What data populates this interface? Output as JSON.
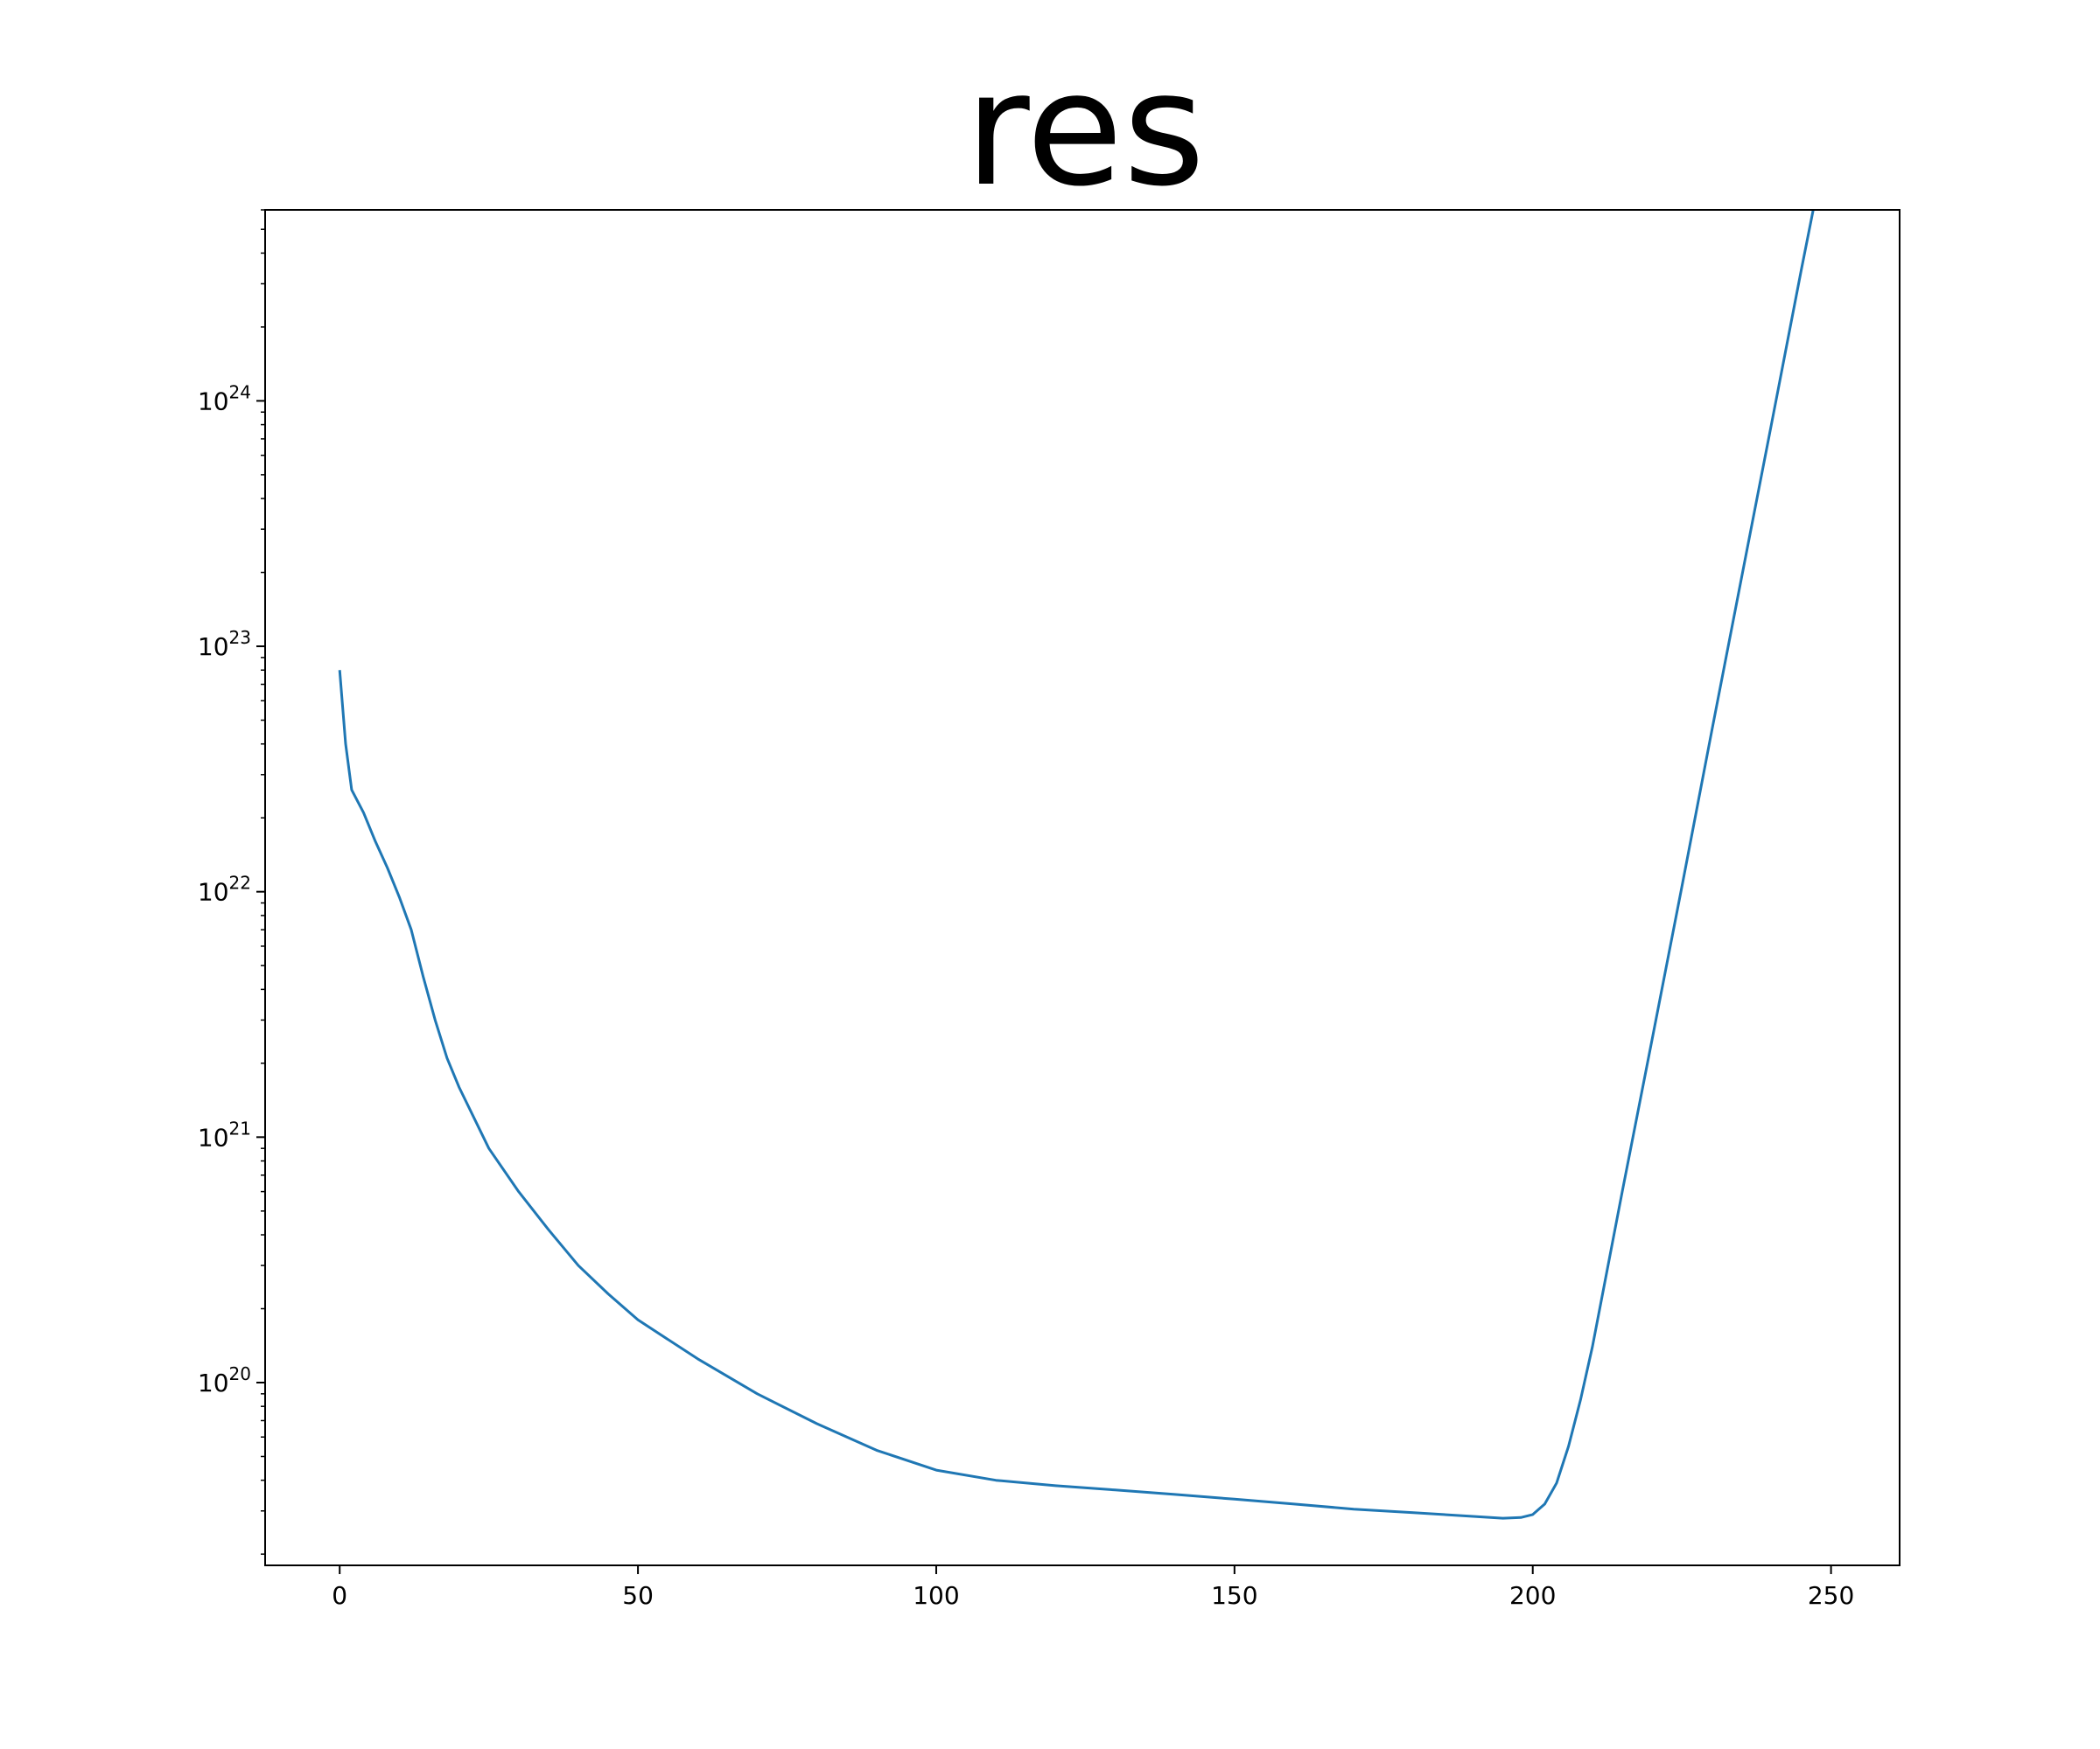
{
  "chart_data": {
    "type": "line",
    "title": "res",
    "xlabel": "",
    "ylabel": "",
    "xscale": "linear",
    "yscale": "log",
    "xlim": [
      -12.5,
      261.5
    ],
    "ylim": [
      1.8e+19,
      6e+24
    ],
    "grid": false,
    "line_color": "#1f77b4",
    "x_ticks": [
      0,
      50,
      100,
      150,
      200,
      250
    ],
    "x_tick_labels": [
      "0",
      "50",
      "100",
      "150",
      "200",
      "250"
    ],
    "y_ticks": [
      1e+20,
      1e+21,
      1e+22,
      1e+23,
      1e+24
    ],
    "y_tick_labels": [
      {
        "base": "10",
        "exp": "20"
      },
      {
        "base": "10",
        "exp": "21"
      },
      {
        "base": "10",
        "exp": "22"
      },
      {
        "base": "10",
        "exp": "23"
      },
      {
        "base": "10",
        "exp": "24"
      }
    ],
    "series": [
      {
        "x": [
          0,
          1,
          2,
          4,
          6,
          8,
          10,
          12,
          14,
          16,
          18,
          20,
          25,
          30,
          35,
          40,
          45,
          50,
          60,
          70,
          80,
          90,
          100,
          110,
          120,
          130,
          140,
          150,
          160,
          170,
          180,
          190,
          195,
          198,
          200,
          202,
          204,
          206,
          208,
          210,
          212,
          215,
          220,
          225,
          230,
          235,
          240,
          245,
          249
        ],
        "y": [
          8e+22,
          4e+22,
          2.6e+22,
          2.1e+22,
          1.6e+22,
          1.25e+22,
          9.5e+21,
          7e+21,
          4.5e+21,
          3e+21,
          2.1e+21,
          1.6e+21,
          9e+20,
          6e+20,
          4.2e+20,
          3e+20,
          2.3e+20,
          1.8e+20,
          1.25e+20,
          9e+19,
          6.8e+19,
          5.3e+19,
          4.4e+19,
          4e+19,
          3.8e+19,
          3.65e+19,
          3.5e+19,
          3.35e+19,
          3.2e+19,
          3.05e+19,
          2.95e+19,
          2.85e+19,
          2.8e+19,
          2.82e+19,
          2.9e+19,
          3.2e+19,
          3.9e+19,
          5.5e+19,
          8.5e+19,
          1.4e+20,
          2.5e+20,
          6e+20,
          2.5e+21,
          1.05e+22,
          4.5e+22,
          1.9e+23,
          8e+23,
          3.4e+24,
          1.05e+25
        ]
      }
    ]
  }
}
